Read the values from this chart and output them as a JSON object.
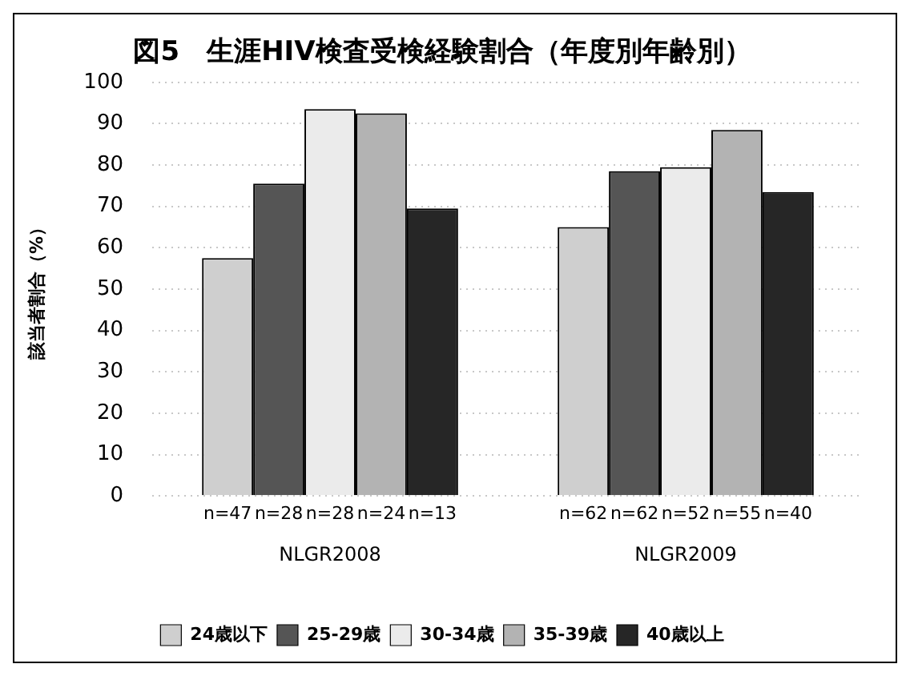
{
  "chart_data": {
    "type": "bar",
    "title": "図5　生涯HIV検査受検経験割合（年度別年齢別）",
    "ylabel": "該当者割合（%）",
    "categories": [
      "NLGR2008",
      "NLGR2009"
    ],
    "series": [
      {
        "name": "24歳以下",
        "color": "#cfcfcf",
        "values": [
          57.5,
          65
        ]
      },
      {
        "name": "25-29歳",
        "color": "#555555",
        "values": [
          75.5,
          78.5
        ]
      },
      {
        "name": "30-34歳",
        "color": "#ebebeb",
        "values": [
          93.5,
          79.5
        ]
      },
      {
        "name": "35-39歳",
        "color": "#b3b3b3",
        "values": [
          92.5,
          88.5
        ]
      },
      {
        "name": "40歳以上",
        "color": "#262626",
        "values": [
          69.5,
          73.5
        ]
      }
    ],
    "annotations": [
      "n=47",
      "n=28",
      "n=28",
      "n=24",
      "n=13",
      "n=62",
      "n=62",
      "n=52",
      "n=55",
      "n=40"
    ],
    "ylim": [
      0,
      100
    ],
    "yticks": [
      0,
      10,
      20,
      30,
      40,
      50,
      60,
      70,
      80,
      90,
      100
    ],
    "grid": "y",
    "legend": "bottom"
  }
}
